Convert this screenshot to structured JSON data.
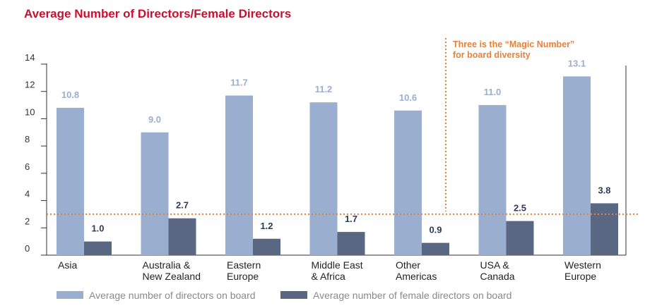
{
  "chart_data": {
    "type": "bar",
    "title": "Average Number of Directors/Female Directors",
    "categories": [
      "Asia",
      "Australia & New Zealand",
      "Eastern Europe",
      "Middle East & Africa",
      "Other Americas",
      "USA & Canada",
      "Western Europe"
    ],
    "category_lines": [
      [
        "Asia"
      ],
      [
        "Australia &",
        "New Zealand"
      ],
      [
        "Eastern",
        "Europe"
      ],
      [
        "Middle East",
        "& Africa"
      ],
      [
        "Other",
        "Americas"
      ],
      [
        "USA &",
        "Canada"
      ],
      [
        "Western",
        "Europe"
      ]
    ],
    "series": [
      {
        "name": "Average number of directors on board",
        "values": [
          10.8,
          9.0,
          11.7,
          11.2,
          10.6,
          11.0,
          13.1
        ],
        "color": "#9aaed0"
      },
      {
        "name": "Average number of female directors on board",
        "values": [
          1.0,
          2.7,
          1.2,
          1.7,
          0.9,
          2.5,
          3.8
        ],
        "color": "#5a6782"
      }
    ],
    "ylim": [
      0,
      14
    ],
    "yticks": [
      0,
      2,
      4,
      6,
      8,
      10,
      12,
      14
    ],
    "reference_line": {
      "value": 3,
      "color": "#e8803a"
    },
    "annotation": {
      "lines": [
        "Three is the “Magic Number”",
        "for board diversity"
      ],
      "color": "#e8803a"
    },
    "legend_position": "bottom",
    "grid": false,
    "label_color": "#2e3a55"
  }
}
